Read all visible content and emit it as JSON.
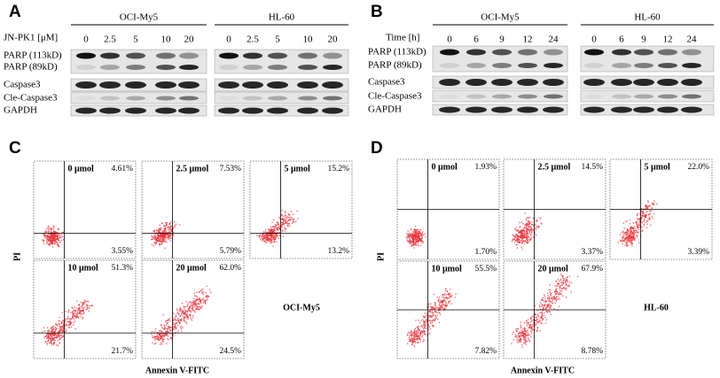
{
  "panel_a": {
    "letter": "A",
    "dose_label": "JN-PK1 [μM]",
    "doses": [
      "0",
      "2.5",
      "5",
      "10",
      "20"
    ],
    "cell_lines": [
      "OCI-My5",
      "HL-60"
    ],
    "rows": [
      "PARP (113kD)",
      "PARP (89kD)",
      "Caspase3",
      "Cle-Caspase3",
      "GAPDH"
    ]
  },
  "panel_b": {
    "letter": "B",
    "time_label": "Time [h]",
    "times": [
      "0",
      "6",
      "9",
      "12",
      "24"
    ],
    "cell_lines": [
      "OCI-My5",
      "HL-60"
    ],
    "rows": [
      "PARP (113kD)",
      "PARP (89kD)",
      "Caspase3",
      "Cle-Caspase3",
      "GAPDH"
    ]
  },
  "panel_c": {
    "letter": "C",
    "y_axis": "PI",
    "x_axis": "Annexin V-FITC",
    "cell_line": "OCI-My5",
    "plots": [
      {
        "label": "0 μmol",
        "upper_right": "4.61%",
        "lower_right": "3.55%"
      },
      {
        "label": "2.5 μmol",
        "upper_right": "7.53%",
        "lower_right": "5.79%"
      },
      {
        "label": "5 μmol",
        "upper_right": "15.2%",
        "lower_right": "13.2%"
      },
      {
        "label": "10 μmol",
        "upper_right": "51.3%",
        "lower_right": "21.7%"
      },
      {
        "label": "20 μmol",
        "upper_right": "62.0%",
        "lower_right": "24.5%"
      }
    ]
  },
  "panel_d": {
    "letter": "D",
    "y_axis": "PI",
    "x_axis": "Annexin V-FITC",
    "cell_line": "HL-60",
    "plots": [
      {
        "label": "0 μmol",
        "upper_right": "1.93%",
        "lower_right": "1.70%"
      },
      {
        "label": "2.5 μmol",
        "upper_right": "14.5%",
        "lower_right": "3.37%"
      },
      {
        "label": "5 μmol",
        "upper_right": "22.0%",
        "lower_right": "3.39%"
      },
      {
        "label": "10 μmol",
        "upper_right": "55.5%",
        "lower_right": "7.82%"
      },
      {
        "label": "20 μmol",
        "upper_right": "67.9%",
        "lower_right": "8.78%"
      }
    ]
  }
}
